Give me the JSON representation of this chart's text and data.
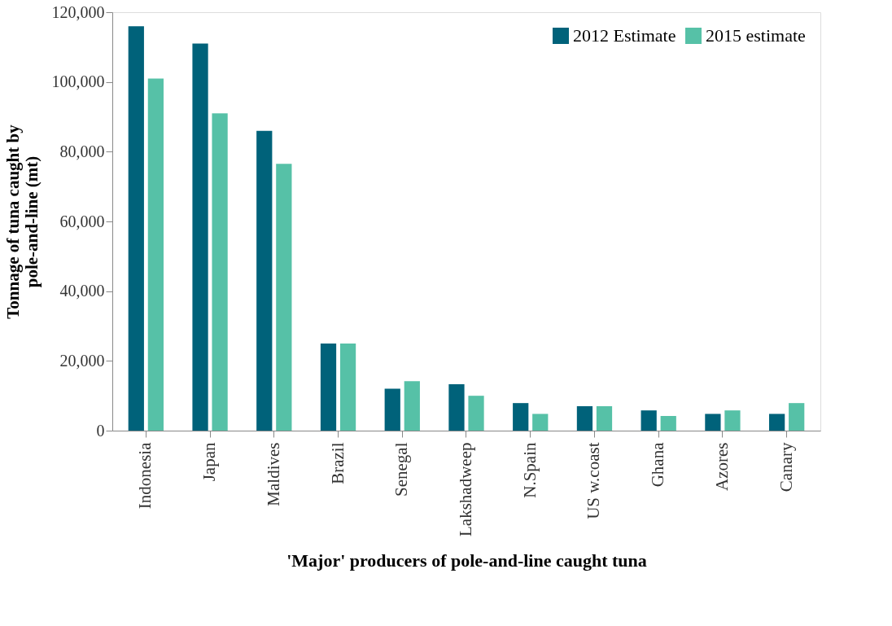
{
  "chart_data": {
    "type": "bar",
    "xlabel": "'Major' producers of pole-and-line caught tuna",
    "ylabel": "Tonnage of tuna caught by\npole-and-line (mt)",
    "categories": [
      "Indonesia",
      "Japan",
      "Maldives",
      "Brazil",
      "Senegal",
      "Lakshadweep",
      "N.Spain",
      "US w.coast",
      "Ghana",
      "Azores",
      "Canary"
    ],
    "series": [
      {
        "name": "2012 Estimate",
        "color": "#00627a",
        "values": [
          116000,
          111000,
          86000,
          25000,
          12000,
          13300,
          7900,
          7000,
          5800,
          4800,
          4800
        ]
      },
      {
        "name": "2015 estimate",
        "color": "#56c1a7",
        "values": [
          101000,
          91000,
          76500,
          25000,
          14200,
          10000,
          4800,
          7000,
          4200,
          5800,
          7900
        ]
      }
    ],
    "ylim": [
      0,
      120000
    ],
    "yticks": [
      {
        "value": 0,
        "label": "0"
      },
      {
        "value": 20000,
        "label": "20,000"
      },
      {
        "value": 40000,
        "label": "40,000"
      },
      {
        "value": 60000,
        "label": "60,000"
      },
      {
        "value": 80000,
        "label": "80,000"
      },
      {
        "value": 100000,
        "label": "100,000"
      },
      {
        "value": 120000,
        "label": "120,000"
      }
    ],
    "grid": false,
    "legend": "top right"
  }
}
